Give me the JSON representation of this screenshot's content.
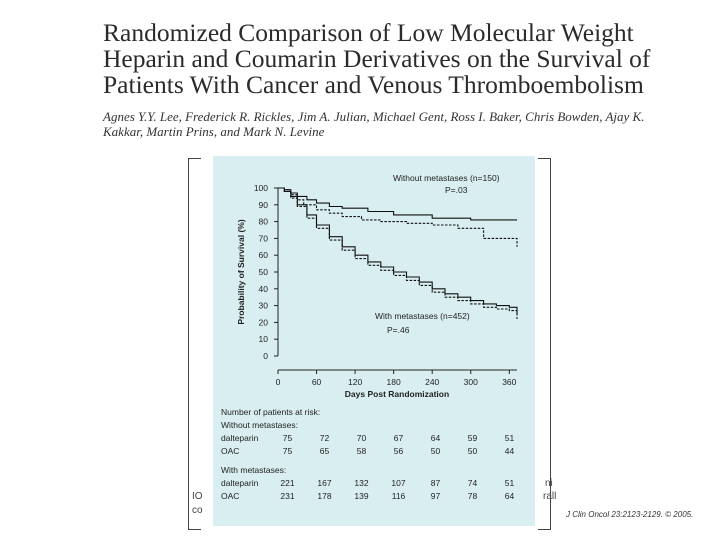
{
  "title": "Randomized Comparison of Low Molecular Weight Heparin and Coumarin Derivatives on the Survival of Patients With Cancer and Venous Thromboembolism",
  "authors": "Agnes Y.Y. Lee, Frederick R. Rickles, Jim A. Julian, Michael Gent, Ross I. Baker, Chris Bowden, Ajay K. Kakkar, Martin Prins, and Mark N. Levine",
  "citation": "J Clin Oncol 23:2123-2129. © 2005.",
  "side_fragments": {
    "left_top": "IO",
    "left_bottom": "co",
    "right_top": "ni",
    "right_bottom": "rall"
  },
  "chart_data": {
    "type": "line",
    "xlabel": "Days Post Randomization",
    "ylabel": "Probability of Survival (%)",
    "xlim": [
      0,
      372
    ],
    "ylim": [
      0,
      100
    ],
    "xticks": [
      0,
      60,
      120,
      180,
      240,
      300,
      360
    ],
    "yticks": [
      0,
      10,
      20,
      30,
      40,
      50,
      60,
      70,
      80,
      90,
      100
    ],
    "series": [
      {
        "name": "Without metastases - dalteparin",
        "style": "solid",
        "x": [
          0,
          10,
          20,
          30,
          45,
          60,
          80,
          100,
          140,
          180,
          240,
          300,
          372
        ],
        "y": [
          100,
          99,
          97,
          95,
          93,
          91,
          89,
          88,
          86,
          84,
          82,
          81,
          81
        ]
      },
      {
        "name": "Without metastases - OAC",
        "style": "dashed",
        "x": [
          0,
          10,
          20,
          30,
          40,
          60,
          80,
          100,
          130,
          160,
          200,
          240,
          280,
          320,
          372
        ],
        "y": [
          100,
          98,
          96,
          93,
          90,
          87,
          85,
          83,
          81,
          80,
          79,
          78,
          76,
          70,
          65
        ]
      },
      {
        "name": "With metastases - dalteparin",
        "style": "solid",
        "x": [
          0,
          10,
          20,
          30,
          45,
          60,
          80,
          100,
          120,
          140,
          160,
          180,
          200,
          220,
          240,
          260,
          280,
          300,
          320,
          340,
          360,
          372
        ],
        "y": [
          100,
          98,
          95,
          90,
          84,
          78,
          71,
          65,
          60,
          56,
          53,
          50,
          47,
          44,
          40,
          37,
          35,
          33,
          31,
          30,
          29,
          25
        ]
      },
      {
        "name": "With metastases - OAC",
        "style": "dashed",
        "x": [
          0,
          10,
          20,
          30,
          45,
          60,
          80,
          100,
          120,
          140,
          160,
          180,
          200,
          220,
          240,
          260,
          280,
          300,
          320,
          340,
          360,
          372
        ],
        "y": [
          100,
          98,
          94,
          89,
          82,
          76,
          69,
          63,
          58,
          54,
          51,
          48,
          45,
          42,
          38,
          35,
          33,
          31,
          29,
          28,
          27,
          22
        ]
      }
    ],
    "annotations": [
      {
        "label": "Without metastases (n=150)",
        "p": "P=.03"
      },
      {
        "label": "With metastases (n=452)",
        "p": "P=.46"
      }
    ],
    "risk_table": {
      "header": "Number of patients at risk:",
      "groups": [
        {
          "name": "Without metastases:",
          "rows": [
            {
              "arm": "dalteparin",
              "values": [
                75,
                72,
                70,
                67,
                64,
                59,
                51
              ]
            },
            {
              "arm": "OAC",
              "values": [
                75,
                65,
                58,
                56,
                50,
                50,
                44
              ]
            }
          ]
        },
        {
          "name": "With metastases:",
          "rows": [
            {
              "arm": "dalteparin",
              "values": [
                221,
                167,
                132,
                107,
                87,
                74,
                51
              ]
            },
            {
              "arm": "OAC",
              "values": [
                231,
                178,
                139,
                116,
                97,
                78,
                64
              ]
            }
          ]
        }
      ]
    }
  }
}
